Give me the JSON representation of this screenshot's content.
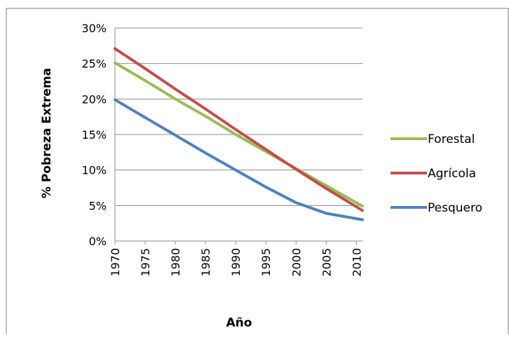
{
  "chart_data": {
    "type": "line",
    "title": "",
    "xlabel": "Año",
    "ylabel": "% Pobreza Extrema",
    "xlim": [
      1970,
      2011
    ],
    "ylim": [
      0,
      30
    ],
    "x_ticks": [
      "1970",
      "1975",
      "1980",
      "1985",
      "1990",
      "1995",
      "2000",
      "2005",
      "2010"
    ],
    "y_ticks": [
      "0%",
      "5%",
      "10%",
      "15%",
      "20%",
      "25%",
      "30%"
    ],
    "grid": "horizontal",
    "legend_position": "right",
    "series": [
      {
        "name": "Forestal",
        "color": "#9bbb59",
        "x": [
          1970,
          1975,
          1980,
          1985,
          1990,
          1995,
          2000,
          2005,
          2011
        ],
        "y": [
          25.1,
          22.6,
          20.0,
          17.6,
          15.0,
          12.6,
          10.2,
          7.8,
          4.9
        ]
      },
      {
        "name": "Agrícola",
        "color": "#c0504d",
        "x": [
          1970,
          1975,
          1980,
          1985,
          1990,
          1995,
          2000,
          2005,
          2011
        ],
        "y": [
          27.1,
          24.3,
          21.4,
          18.6,
          15.7,
          12.9,
          10.1,
          7.4,
          4.3
        ]
      },
      {
        "name": "Pesquero",
        "color": "#4f81bd",
        "x": [
          1970,
          1975,
          1980,
          1985,
          1990,
          1995,
          2000,
          2005,
          2011
        ],
        "y": [
          19.9,
          17.4,
          14.9,
          12.4,
          10.0,
          7.6,
          5.4,
          3.9,
          3.0
        ]
      }
    ]
  }
}
